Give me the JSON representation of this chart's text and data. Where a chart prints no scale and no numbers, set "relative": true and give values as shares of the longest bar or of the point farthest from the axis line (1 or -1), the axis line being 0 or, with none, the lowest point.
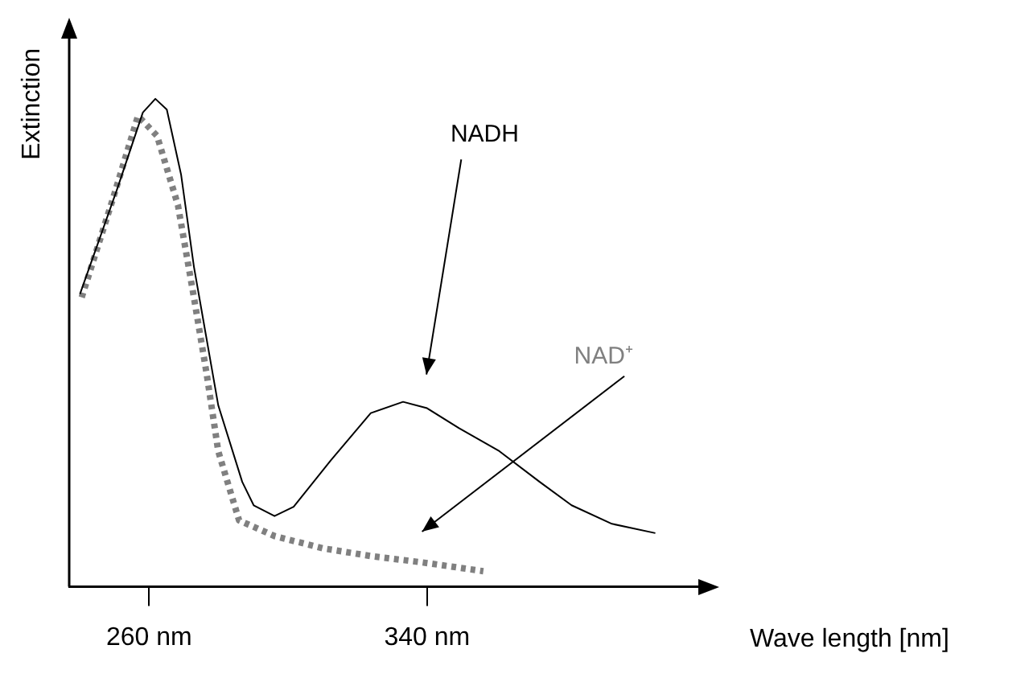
{
  "chart_data": {
    "type": "line",
    "relative": true,
    "xlabel": "Wave length [nm]",
    "ylabel": "Extinction",
    "xlim": [
      237,
      419
    ],
    "xticks": [
      {
        "value": 260,
        "label": "260 nm"
      },
      {
        "value": 340,
        "label": "340 nm"
      }
    ],
    "grid": false,
    "legend": false,
    "marker": "none",
    "series": [
      {
        "color": "#000000",
        "line_style": "solid",
        "x": [
          240.1,
          250.8,
          258.2,
          261.8,
          265.1,
          269.2,
          272.9,
          279.9,
          286.8,
          290.1,
          296.1,
          301.6,
          312.3,
          323.8,
          333.1,
          340,
          349.2,
          360.8,
          372.4,
          381.6,
          393.2,
          405.7
        ],
        "values": [
          0.6,
          0.815,
          0.972,
          1,
          0.978,
          0.845,
          0.656,
          0.372,
          0.215,
          0.167,
          0.145,
          0.164,
          0.259,
          0.356,
          0.379,
          0.366,
          0.325,
          0.278,
          0.215,
          0.167,
          0.129,
          0.11
        ]
      },
      {
        "color": "#808080",
        "line_style": "dotted",
        "x": [
          240.6,
          249.8,
          256.8,
          262.3,
          268.3,
          272.9,
          276.6,
          279.9,
          285.9,
          296.1,
          309.9,
          323.8,
          338.6,
          356.2
        ],
        "values": [
          0.593,
          0.8,
          0.965,
          0.924,
          0.782,
          0.593,
          0.435,
          0.278,
          0.136,
          0.104,
          0.079,
          0.063,
          0.05,
          0.032
        ]
      }
    ],
    "annotations": [
      "NADH",
      "NAD⁺"
    ]
  }
}
